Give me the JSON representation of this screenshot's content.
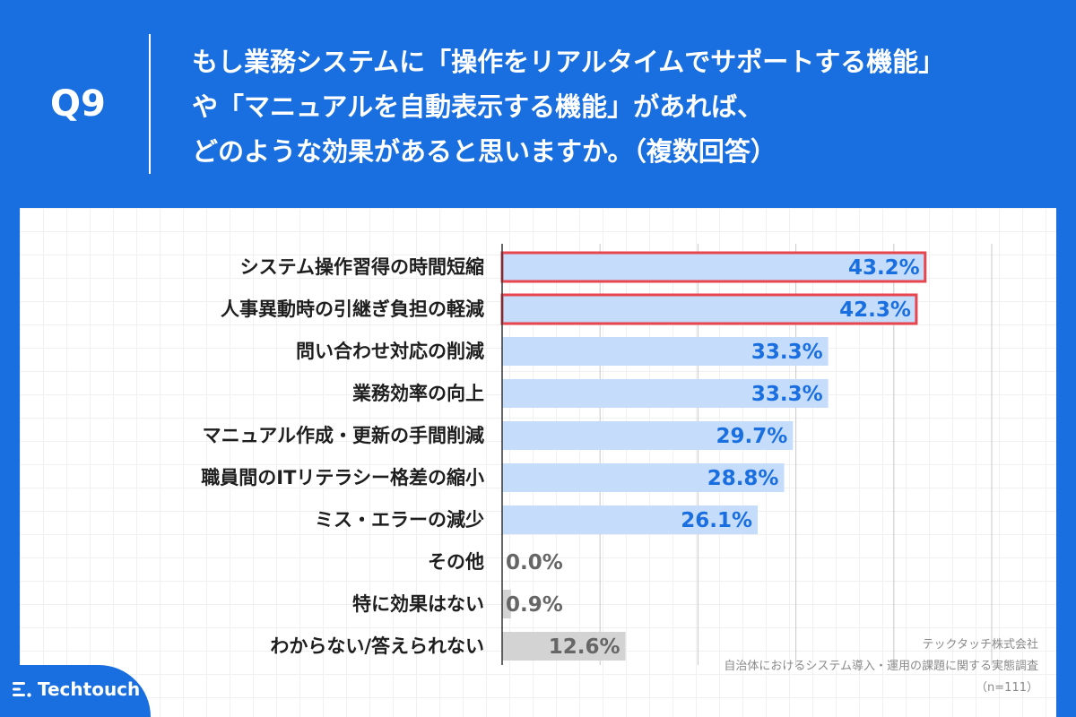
{
  "header": {
    "q_number": "Q9",
    "question_lines": [
      "もし業務システムに「操作をリアルタイムでサポートする機能」",
      "や「マニュアルを自動表示する機能」があれば、",
      "どのような効果があると思いますか。（複数回答）"
    ]
  },
  "chart_data": {
    "type": "bar",
    "orientation": "horizontal",
    "title": "もし業務システムに「操作をリアルタイムでサポートする機能」や「マニュアルを自動表示する機能」があれば、どのような効果があると思いますか。（複数回答）",
    "categories": [
      "システム操作習得の時間短縮",
      "人事異動時の引継ぎ負担の軽減",
      "問い合わせ対応の削減",
      "業務効率の向上",
      "マニュアル作成・更新の手間削減",
      "職員間のITリテラシー格差の縮小",
      "ミス・エラーの減少",
      "その他",
      "特に効果はない",
      "わからない/答えられない"
    ],
    "values": [
      43.2,
      42.3,
      33.3,
      33.3,
      29.7,
      28.8,
      26.1,
      0.0,
      0.9,
      12.6
    ],
    "value_labels": [
      "43.2%",
      "42.3%",
      "33.3%",
      "33.3%",
      "29.7%",
      "28.8%",
      "26.1%",
      "0.0%",
      "0.9%",
      "12.6%"
    ],
    "highlighted": [
      true,
      true,
      false,
      false,
      false,
      false,
      false,
      false,
      false,
      false
    ],
    "bar_kinds": [
      "effect",
      "effect",
      "effect",
      "effect",
      "effect",
      "effect",
      "effect",
      "other",
      "other",
      "other"
    ],
    "xlim": [
      0,
      50
    ],
    "unit": "%",
    "grid": true,
    "colors": {
      "effect_bar": "#c5dcfb",
      "other_bar": "#d3d3d3",
      "effect_text": "#1a6fe0",
      "other_text": "#666666",
      "highlight_border": "#e8454f",
      "axis": "#333333",
      "gridline": "#c8c8c8"
    }
  },
  "source": {
    "company": "テックタッチ株式会社",
    "survey": "自治体におけるシステム導入・運用の課題に関する実態調査",
    "n": "（n=111）"
  },
  "logo": {
    "text": "Techtouch",
    "icon": "techtouch-logo-icon"
  }
}
